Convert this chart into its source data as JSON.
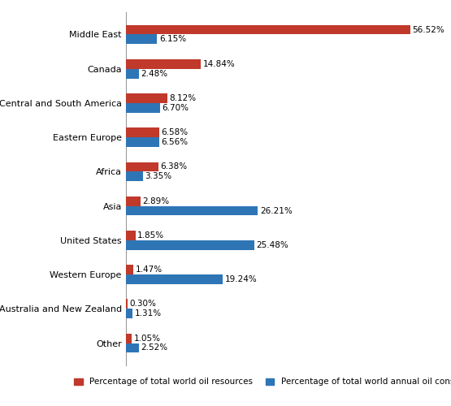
{
  "categories": [
    "Middle East",
    "Canada",
    "Central and South America",
    "Eastern Europe",
    "Africa",
    "Asia",
    "United States",
    "Western Europe",
    "Australia and New Zealand",
    "Other"
  ],
  "resources": [
    56.52,
    14.84,
    8.12,
    6.58,
    6.38,
    2.89,
    1.85,
    1.47,
    0.3,
    1.05
  ],
  "consumption": [
    6.15,
    2.48,
    6.7,
    6.56,
    3.35,
    26.21,
    25.48,
    19.24,
    1.31,
    2.52
  ],
  "resource_color": "#C0392B",
  "consumption_color": "#2E75B6",
  "background_color": "#FFFFFF",
  "legend_resource": "Percentage of total world oil resources",
  "legend_consumption": "Percentage of total world annual oil consumption",
  "bar_height": 0.28,
  "xlim": [
    0,
    62
  ],
  "label_fontsize": 7.5,
  "tick_fontsize": 8.0,
  "legend_fontsize": 7.5
}
